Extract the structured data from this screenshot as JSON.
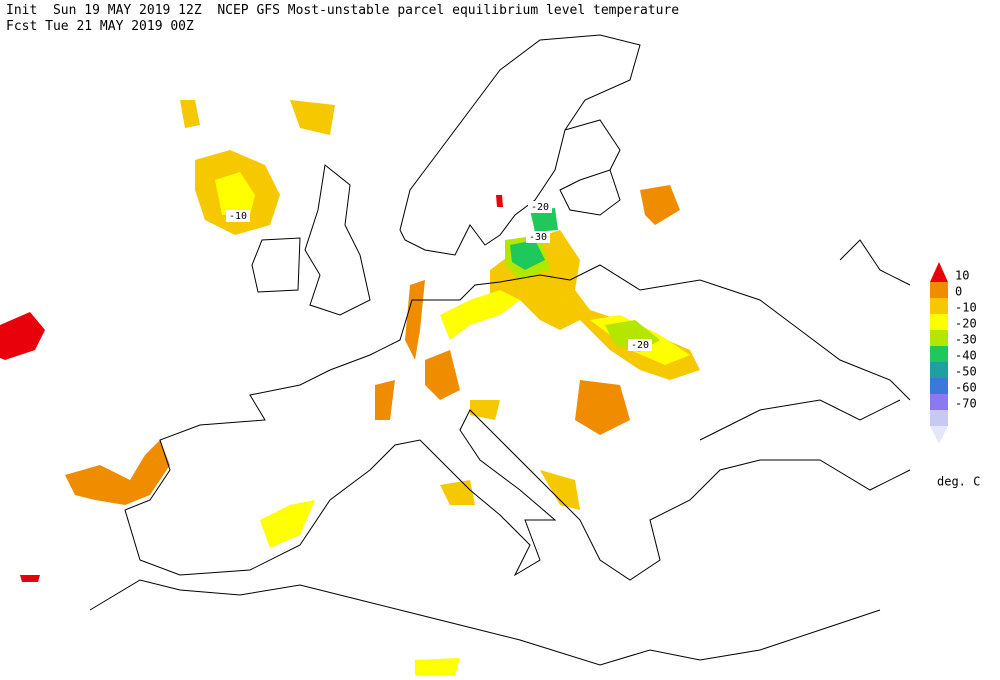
{
  "header": {
    "line1": "Init  Sun 19 MAY 2019 12Z  NCEP GFS Most-unstable parcel equilibrium level temperature",
    "line2": "Fcst Tue 21 MAY 2019 00Z"
  },
  "map": {
    "contour_labels": [
      -10,
      -20,
      -30,
      -20
    ]
  },
  "legend": {
    "labels": [
      10,
      0,
      -10,
      -20,
      -30,
      -40,
      -50,
      -60,
      -70
    ],
    "colors": [
      "#e8000b",
      "#f08c00",
      "#f5c800",
      "#ffff00",
      "#b4e600",
      "#1ec85a",
      "#1ea0a0",
      "#3c78dc",
      "#8c78f0",
      "#c8c8f5",
      "#e6e6fa"
    ],
    "units": "deg. C"
  }
}
